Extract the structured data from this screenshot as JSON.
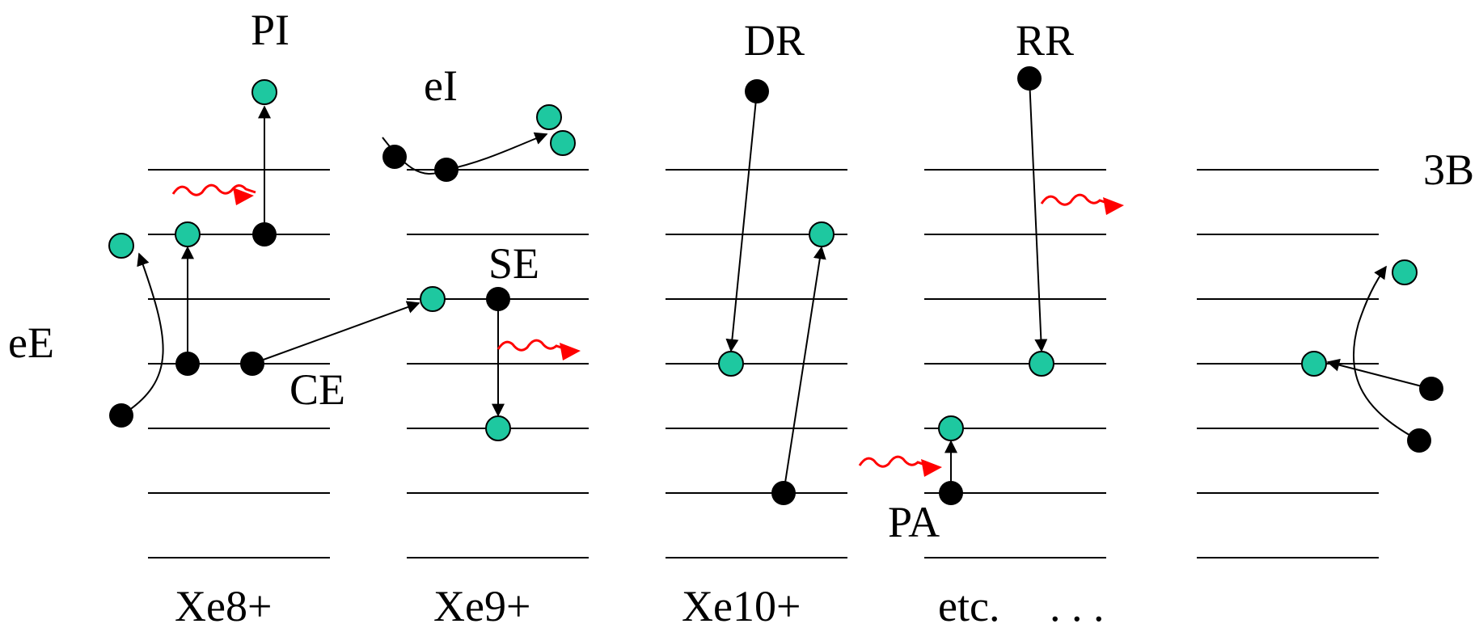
{
  "labels": {
    "pi": "PI",
    "ei": "eI",
    "dr": "DR",
    "rr": "RR",
    "three_b": "3B",
    "ee": "eE",
    "se": "SE",
    "ce": "CE",
    "pa": "PA"
  },
  "ion_labels": {
    "xe8": "Xe8+",
    "xe9": "Xe9+",
    "xe10": "Xe10+",
    "etc": "etc.",
    "ellipsis": ". . ."
  },
  "colors": {
    "bound_electron": "#000000",
    "final_state_electron": "#1ec8a0",
    "photon": "#ff0000",
    "levels": "#000000"
  }
}
